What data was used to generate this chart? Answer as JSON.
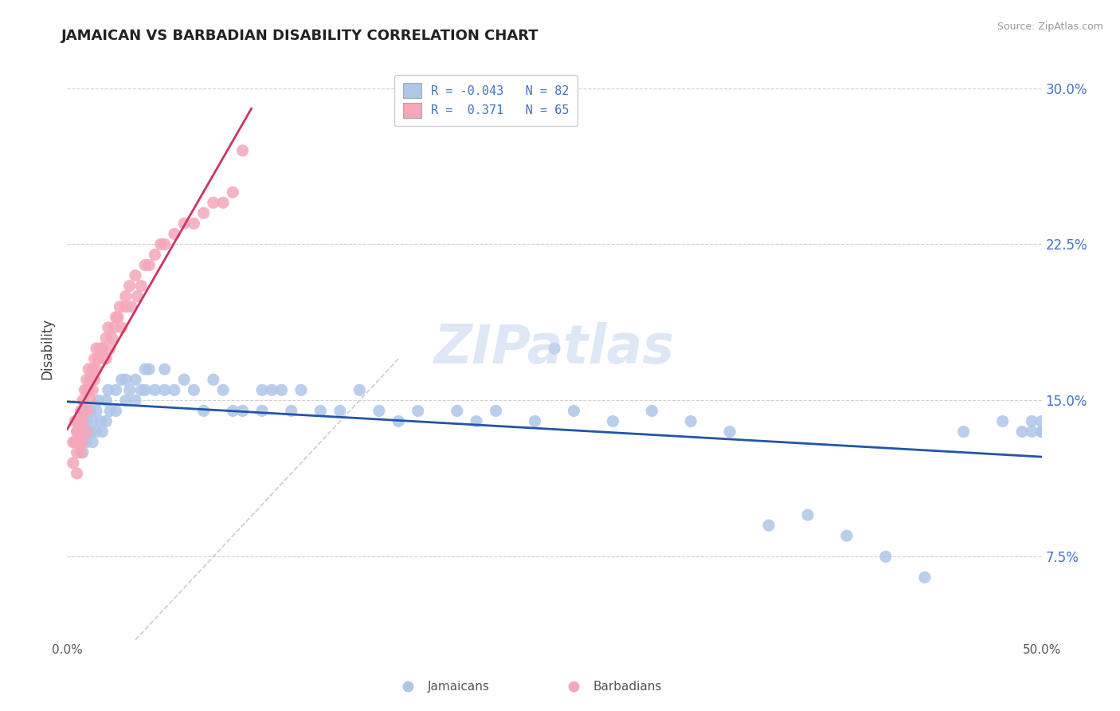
{
  "title": "JAMAICAN VS BARBADIAN DISABILITY CORRELATION CHART",
  "source": "Source: ZipAtlas.com",
  "ylabel": "Disability",
  "ytick_labels": [
    "7.5%",
    "15.0%",
    "22.5%",
    "30.0%"
  ],
  "ytick_vals": [
    0.075,
    0.15,
    0.225,
    0.3
  ],
  "ylim": [
    0.035,
    0.315
  ],
  "xlim": [
    0.0,
    0.5
  ],
  "legend_line1": "R = -0.043   N = 82",
  "legend_line2": "R =  0.371   N = 65",
  "jamaican_color": "#AEC6E8",
  "barbadian_color": "#F4A7B9",
  "trendline_jamaican_color": "#2255AA",
  "trendline_barbadian_color": "#CC3366",
  "diagonal_color": "#D8C8C8",
  "background_color": "#FFFFFF",
  "jamaican_x": [
    0.005,
    0.005,
    0.005,
    0.007,
    0.007,
    0.008,
    0.008,
    0.008,
    0.01,
    0.01,
    0.01,
    0.012,
    0.012,
    0.013,
    0.013,
    0.015,
    0.015,
    0.016,
    0.017,
    0.018,
    0.02,
    0.02,
    0.021,
    0.022,
    0.025,
    0.025,
    0.028,
    0.03,
    0.03,
    0.032,
    0.035,
    0.035,
    0.038,
    0.04,
    0.04,
    0.042,
    0.045,
    0.05,
    0.05,
    0.055,
    0.06,
    0.065,
    0.07,
    0.075,
    0.08,
    0.085,
    0.09,
    0.1,
    0.1,
    0.105,
    0.11,
    0.115,
    0.12,
    0.13,
    0.14,
    0.15,
    0.16,
    0.17,
    0.18,
    0.2,
    0.21,
    0.22,
    0.24,
    0.25,
    0.26,
    0.28,
    0.3,
    0.32,
    0.34,
    0.36,
    0.38,
    0.4,
    0.42,
    0.44,
    0.46,
    0.48,
    0.49,
    0.495,
    0.495,
    0.5,
    0.5,
    0.5
  ],
  "jamaican_y": [
    0.135,
    0.14,
    0.13,
    0.14,
    0.13,
    0.145,
    0.135,
    0.125,
    0.14,
    0.135,
    0.13,
    0.145,
    0.135,
    0.14,
    0.13,
    0.145,
    0.135,
    0.15,
    0.14,
    0.135,
    0.15,
    0.14,
    0.155,
    0.145,
    0.155,
    0.145,
    0.16,
    0.16,
    0.15,
    0.155,
    0.16,
    0.15,
    0.155,
    0.165,
    0.155,
    0.165,
    0.155,
    0.165,
    0.155,
    0.155,
    0.16,
    0.155,
    0.145,
    0.16,
    0.155,
    0.145,
    0.145,
    0.155,
    0.145,
    0.155,
    0.155,
    0.145,
    0.155,
    0.145,
    0.145,
    0.155,
    0.145,
    0.14,
    0.145,
    0.145,
    0.14,
    0.145,
    0.14,
    0.175,
    0.145,
    0.14,
    0.145,
    0.14,
    0.135,
    0.09,
    0.095,
    0.085,
    0.075,
    0.065,
    0.135,
    0.14,
    0.135,
    0.135,
    0.14,
    0.14,
    0.135,
    0.135
  ],
  "barbadian_x": [
    0.003,
    0.003,
    0.004,
    0.004,
    0.005,
    0.005,
    0.005,
    0.006,
    0.006,
    0.007,
    0.007,
    0.007,
    0.008,
    0.008,
    0.008,
    0.009,
    0.009,
    0.01,
    0.01,
    0.01,
    0.01,
    0.011,
    0.011,
    0.012,
    0.012,
    0.013,
    0.013,
    0.014,
    0.014,
    0.015,
    0.015,
    0.016,
    0.017,
    0.018,
    0.019,
    0.02,
    0.02,
    0.021,
    0.022,
    0.023,
    0.024,
    0.025,
    0.026,
    0.027,
    0.028,
    0.03,
    0.03,
    0.032,
    0.033,
    0.035,
    0.036,
    0.038,
    0.04,
    0.042,
    0.045,
    0.048,
    0.05,
    0.055,
    0.06,
    0.065,
    0.07,
    0.075,
    0.08,
    0.085,
    0.09
  ],
  "barbadian_y": [
    0.13,
    0.12,
    0.14,
    0.13,
    0.135,
    0.125,
    0.115,
    0.14,
    0.13,
    0.145,
    0.135,
    0.125,
    0.15,
    0.14,
    0.13,
    0.155,
    0.145,
    0.16,
    0.155,
    0.145,
    0.135,
    0.165,
    0.155,
    0.16,
    0.15,
    0.165,
    0.155,
    0.17,
    0.16,
    0.175,
    0.165,
    0.17,
    0.175,
    0.175,
    0.17,
    0.18,
    0.17,
    0.185,
    0.175,
    0.18,
    0.185,
    0.19,
    0.19,
    0.195,
    0.185,
    0.2,
    0.195,
    0.205,
    0.195,
    0.21,
    0.2,
    0.205,
    0.215,
    0.215,
    0.22,
    0.225,
    0.225,
    0.23,
    0.235,
    0.235,
    0.24,
    0.245,
    0.245,
    0.25,
    0.27
  ]
}
